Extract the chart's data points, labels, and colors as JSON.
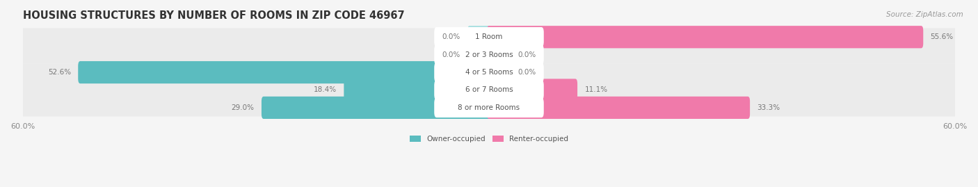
{
  "title": "HOUSING STRUCTURES BY NUMBER OF ROOMS IN ZIP CODE 46967",
  "source": "Source: ZipAtlas.com",
  "categories": [
    "1 Room",
    "2 or 3 Rooms",
    "4 or 5 Rooms",
    "6 or 7 Rooms",
    "8 or more Rooms"
  ],
  "owner_values": [
    0.0,
    0.0,
    52.6,
    18.4,
    29.0
  ],
  "renter_values": [
    55.6,
    0.0,
    0.0,
    11.1,
    33.3
  ],
  "owner_color": "#5bbcbf",
  "renter_color": "#f07aaa",
  "owner_stub_color": "#a8dfe0",
  "renter_stub_color": "#f5b8d0",
  "row_bg_color": "#ebebeb",
  "bg_color": "#f5f5f5",
  "x_max": 60.0,
  "legend_owner": "Owner-occupied",
  "legend_renter": "Renter-occupied",
  "title_fontsize": 10.5,
  "source_fontsize": 7.5,
  "label_fontsize": 7.5,
  "category_fontsize": 7.5,
  "axis_label_fontsize": 8
}
